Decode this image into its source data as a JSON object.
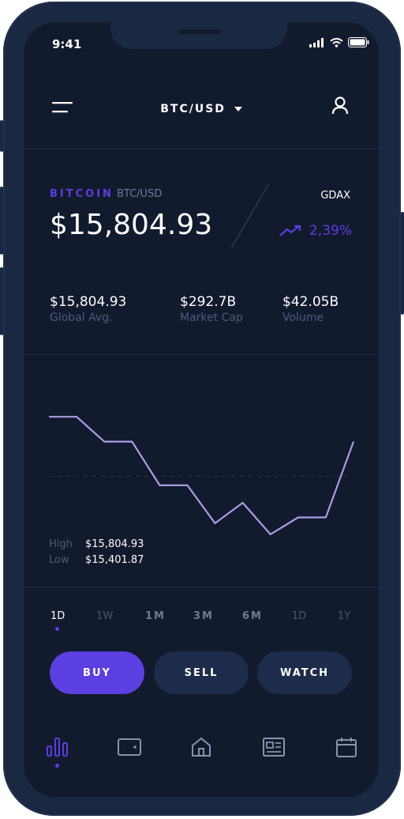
{
  "status_bar": {
    "time": "9:41"
  },
  "header": {
    "pair_selector": "BTC/USD"
  },
  "ticker": {
    "name": "BITCOIN",
    "pair": "BTC/USD",
    "price": "$15,804.93",
    "exchange": "GDAX",
    "change": "2,39%"
  },
  "stats": [
    {
      "value": "$15,804.93",
      "label": "Global Avg."
    },
    {
      "value": "$292.7B",
      "label": "Market Cap"
    },
    {
      "value": "$42.05B",
      "label": "Volume"
    }
  ],
  "chart_data": {
    "type": "line",
    "title": "",
    "xlabel": "",
    "ylabel": "",
    "values": [
      15804.93,
      15804.93,
      15720,
      15720,
      15570,
      15570,
      15440,
      15510,
      15401.87,
      15460,
      15460,
      15720
    ],
    "ylim": [
      15380,
      15830
    ],
    "average_line": 15600
  },
  "high_low": {
    "high_label": "High",
    "high_value": "$15,804.93",
    "low_label": "Low",
    "low_value": "$15,401.87"
  },
  "ranges": [
    "1D",
    "1W",
    "1M",
    "3M",
    "6M",
    "1D",
    "1Y"
  ],
  "actions": {
    "buy": "BUY",
    "sell": "SELL",
    "watch": "WATCH"
  },
  "colors": {
    "accent": "#5b3fe0",
    "background": "#121a2e",
    "line": "#a99ce6"
  },
  "tabs": [
    "chart-icon",
    "wallet-icon",
    "home-icon",
    "news-icon",
    "calendar-icon"
  ]
}
